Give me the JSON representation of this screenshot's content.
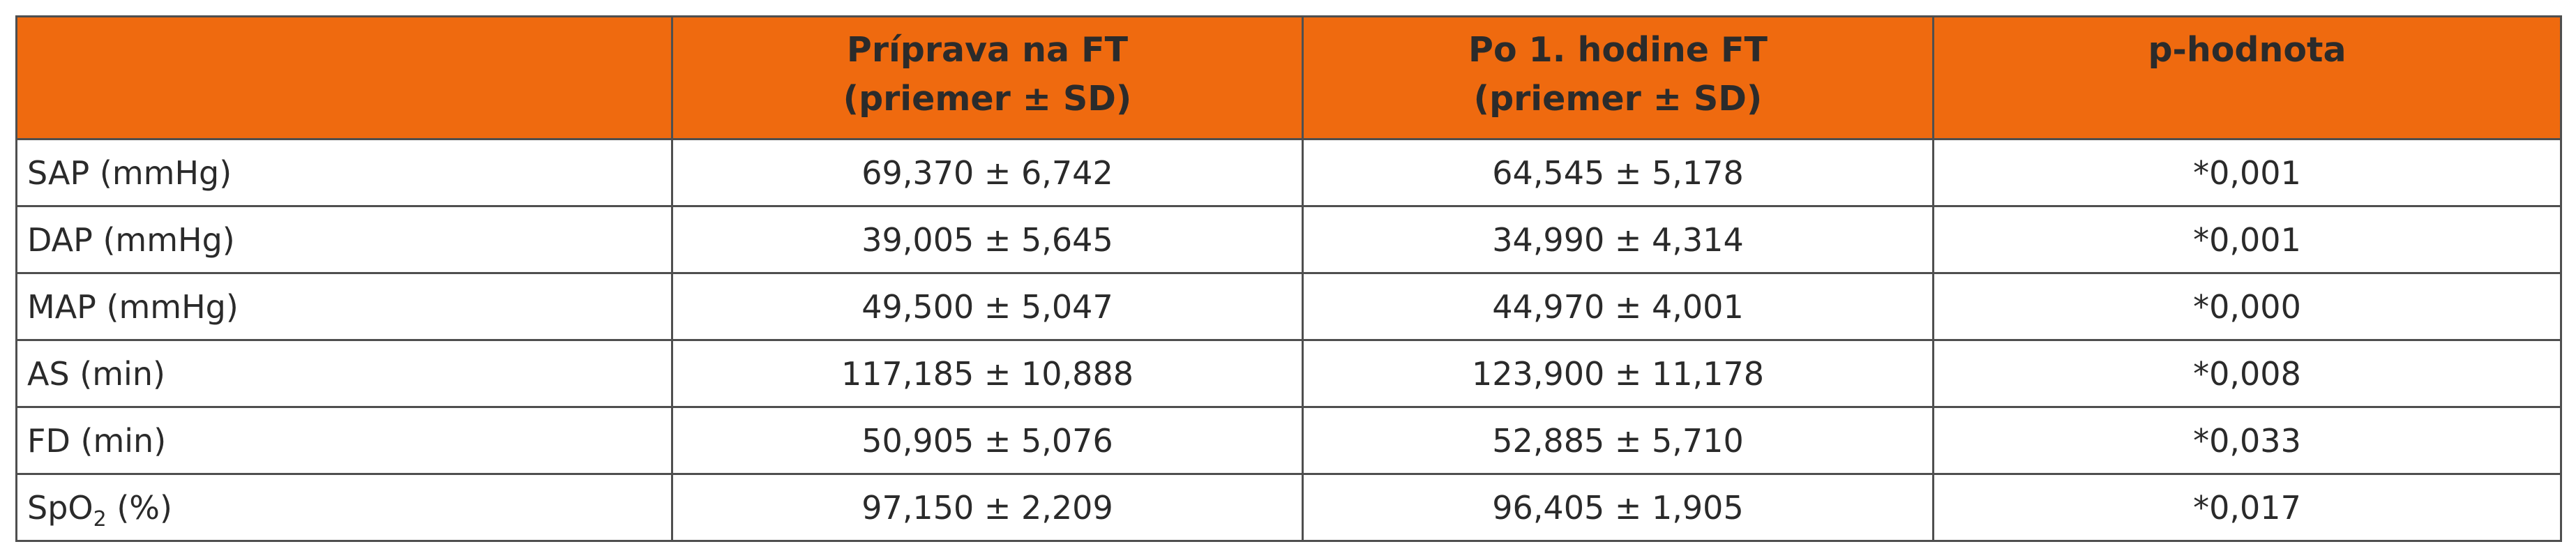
{
  "header": {
    "col0": "",
    "col1_line1": "Príprava na FT",
    "col1_line2": "(priemer ± SD)",
    "col2_line1": "Po 1. hodine FT",
    "col2_line2": "(priemer ± SD)",
    "col3": "p-hodnota"
  },
  "rows": [
    {
      "label": "SAP (mmHg)",
      "prep": "69,370 ± 6,742",
      "after": "64,545 ± 5,178",
      "p": "*0,001"
    },
    {
      "label": "DAP (mmHg)",
      "prep": "39,005 ± 5,645",
      "after": "34,990 ± 4,314",
      "p": "*0,001"
    },
    {
      "label": "MAP (mmHg)",
      "prep": "49,500 ± 5,047",
      "after": "44,970 ± 4,001",
      "p": "*0,000"
    },
    {
      "label": "AS (min)",
      "prep": "117,185 ± 10,888",
      "after": "123,900 ± 11,178",
      "p": "*0,008"
    },
    {
      "label": "FD (min)",
      "prep": "50,905 ± 5,076",
      "after": "52,885 ± 5,710",
      "p": "*0,033"
    },
    {
      "label_main": "SpO",
      "label_sub": "2",
      "label_rest": " (%)",
      "prep": "97,150 ± 2,209",
      "after": "96,405 ± 1,905",
      "p": "*0,017"
    }
  ],
  "colors": {
    "header_bg": "#ef6a0f",
    "border": "#4f4f4f",
    "text": "#2a2a2a"
  }
}
